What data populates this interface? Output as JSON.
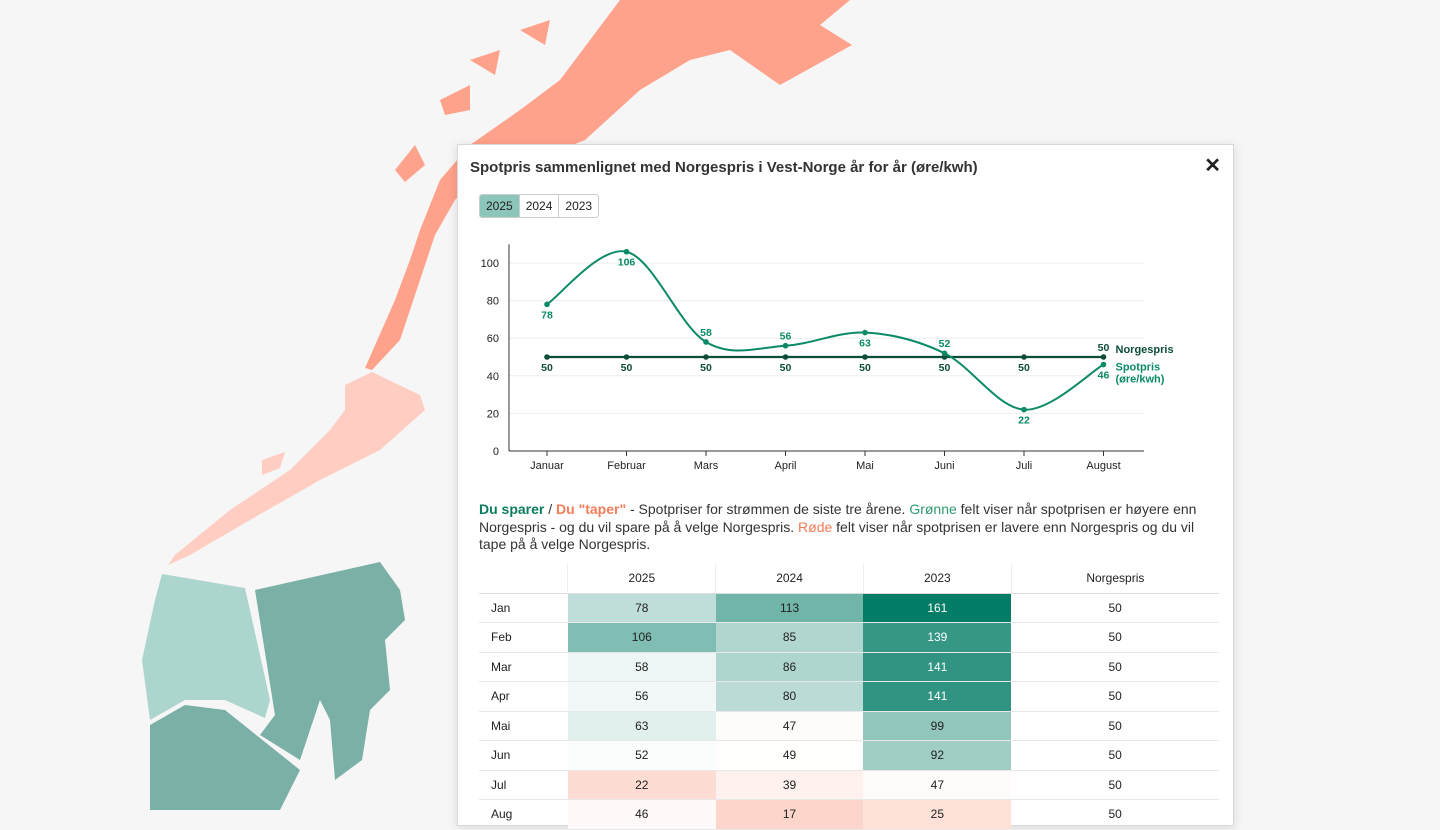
{
  "modal": {
    "title": "Spotpris sammenlignet med Norgespris i Vest-Norge år for år (øre/kwh)",
    "close_icon": "close-icon",
    "year_tabs": [
      {
        "label": "2025",
        "active": true
      },
      {
        "label": "2024",
        "active": false
      },
      {
        "label": "2023",
        "active": false
      }
    ]
  },
  "chart_data": {
    "type": "line",
    "categories": [
      "Januar",
      "Februar",
      "Mars",
      "April",
      "Mai",
      "Juni",
      "Juli",
      "August"
    ],
    "series": [
      {
        "name": "Norgespris",
        "values": [
          50,
          50,
          50,
          50,
          50,
          50,
          50,
          50
        ],
        "color": "#0e4d3a"
      },
      {
        "name": "Spotpris (øre/kwh)",
        "values": [
          78,
          106,
          58,
          56,
          63,
          52,
          22,
          46
        ],
        "color": "#0a8a66"
      }
    ],
    "yticks": [
      0,
      20,
      40,
      60,
      80,
      100
    ],
    "ylim": [
      0,
      110
    ],
    "grid": true,
    "legend": "right"
  },
  "description": {
    "save": "Du sparer",
    "sep": " / ",
    "lose": "Du \"taper\"",
    "t1": " - Spotpriser for strømmen de siste tre årene. ",
    "green": "Grønne",
    "t2": " felt viser når spotprisen er høyere enn Norgespris - og du vil spare på å velge Norgespris. ",
    "red": "Røde",
    "t3": " felt viser når spotprisen er lavere enn Norgespris og du vil tape på å velge Norgespris."
  },
  "table": {
    "headers": [
      "",
      "2025",
      "2024",
      "2023",
      "Norgespris"
    ],
    "rows": [
      [
        "Jan",
        78,
        113,
        161,
        50
      ],
      [
        "Feb",
        106,
        85,
        139,
        50
      ],
      [
        "Mar",
        58,
        86,
        141,
        50
      ],
      [
        "Apr",
        56,
        80,
        141,
        50
      ],
      [
        "Mai",
        63,
        47,
        99,
        50
      ],
      [
        "Jun",
        52,
        49,
        92,
        50
      ],
      [
        "Jul",
        22,
        39,
        47,
        50
      ],
      [
        "Aug",
        46,
        17,
        25,
        50
      ]
    ]
  },
  "colors": {
    "map_north": "#ffa28c",
    "map_mid": "#ffcdc1",
    "map_west": "#acd5ce",
    "map_east": "#7ab0a5",
    "accent": "#047d67"
  }
}
